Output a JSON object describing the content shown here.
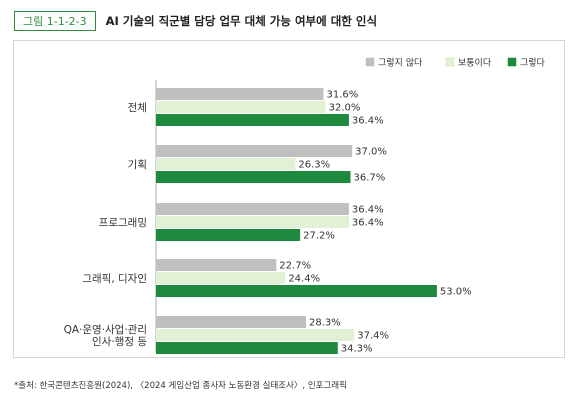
{
  "figure": {
    "number": "그림 1-1-2-3",
    "title": "AI 기술의 직군별 담당 업무 대체 가능 여부에 대한 인식"
  },
  "source": "*출처: 한국콘텐츠진흥원(2024), 〈2024 게임산업 종사자 노동환경 실태조사〉, 인포그래픽",
  "chart_data": {
    "type": "bar",
    "orientation": "horizontal",
    "value_suffix": "%",
    "xlim": [
      0,
      60
    ],
    "grid": false,
    "legend_position": "top-right",
    "categories": [
      [
        "전체"
      ],
      [
        "기획"
      ],
      [
        "프로그래밍"
      ],
      [
        "그래픽, 디자인"
      ],
      [
        "QA·운영·사업·관리",
        "인사·행정 등"
      ]
    ],
    "series": [
      {
        "name": "그렇지 않다",
        "color": "#bfbfbf",
        "values": [
          31.6,
          37.0,
          36.4,
          22.7,
          28.3
        ]
      },
      {
        "name": "보통이다",
        "color": "#e2f0d6",
        "values": [
          32.0,
          26.3,
          36.4,
          24.4,
          37.4
        ]
      },
      {
        "name": "그렇다",
        "color": "#1e8a3e",
        "values": [
          36.4,
          36.7,
          27.2,
          53.0,
          34.3
        ]
      }
    ]
  }
}
